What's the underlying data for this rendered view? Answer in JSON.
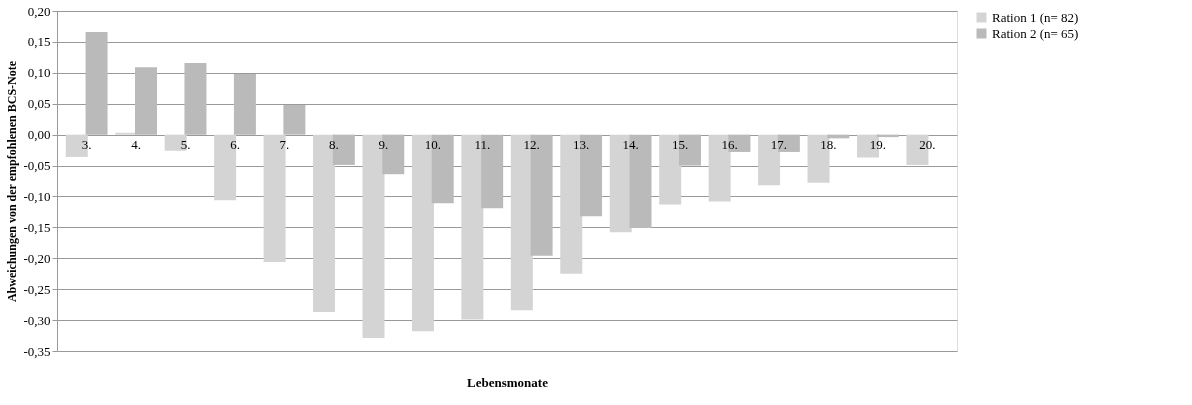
{
  "chart_data": {
    "type": "bar",
    "xlabel": "Lebensmonate",
    "ylabel": "Abweichungen  von der empfohlenen BCS-Note",
    "categories": [
      "3.",
      "4.",
      "5.",
      "6.",
      "7.",
      "8.",
      "9.",
      "10.",
      "11.",
      "12.",
      "13.",
      "14.",
      "15.",
      "16.",
      "17.",
      "18.",
      "19.",
      "20."
    ],
    "series": [
      {
        "name": "Ration 1 (n= 82)",
        "color": "#d4d4d4",
        "values": [
          -0.036,
          0.003,
          -0.026,
          -0.106,
          -0.206,
          -0.287,
          -0.329,
          -0.318,
          -0.299,
          -0.284,
          -0.225,
          -0.158,
          -0.113,
          -0.108,
          -0.082,
          -0.078,
          -0.037,
          -0.049
        ]
      },
      {
        "name": "Ration 2 (n= 65)",
        "color": "#bababa",
        "values": [
          0.166,
          0.109,
          0.116,
          0.098,
          0.048,
          -0.049,
          -0.064,
          -0.111,
          -0.119,
          -0.196,
          -0.132,
          -0.151,
          -0.05,
          -0.028,
          -0.028,
          -0.006,
          -0.004,
          0
        ]
      }
    ],
    "ylim": [
      -0.35,
      0.2
    ],
    "yticks": [
      {
        "value": 0.2,
        "label": "0,20"
      },
      {
        "value": 0.15,
        "label": "0,15"
      },
      {
        "value": 0.1,
        "label": "0,10"
      },
      {
        "value": 0.05,
        "label": "0,05"
      },
      {
        "value": 0,
        "label": "0,00"
      },
      {
        "value": -0.05,
        "label": "-0,05"
      },
      {
        "value": -0.1,
        "label": "-0,10"
      },
      {
        "value": -0.15,
        "label": "-0,15"
      },
      {
        "value": -0.2,
        "label": "-0,20"
      },
      {
        "value": -0.25,
        "label": "-0,25"
      },
      {
        "value": -0.3,
        "label": "-0,30"
      },
      {
        "value": -0.35,
        "label": "-0,35"
      }
    ],
    "grid": "y",
    "legend": "right"
  }
}
